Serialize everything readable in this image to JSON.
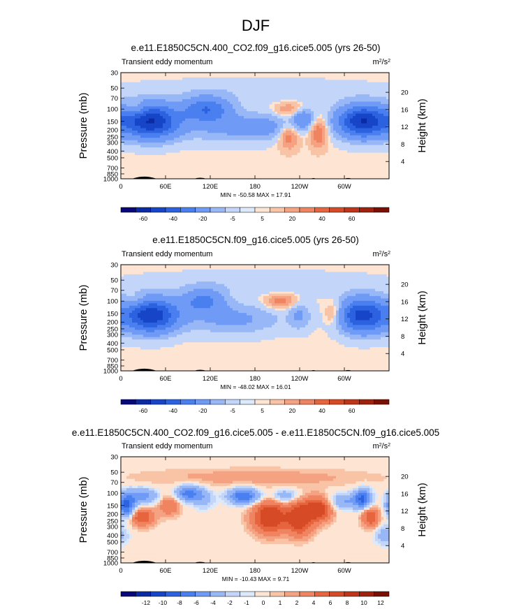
{
  "page_title": "DJF",
  "colors": {
    "neg": [
      "#08087a",
      "#0b2aa4",
      "#1745c8",
      "#2c62e0",
      "#4a7ff0",
      "#6f9af5",
      "#98b7f7",
      "#c3d6fa",
      "#dce9fb"
    ],
    "pos": [
      "#fde4d3",
      "#f9c3a6",
      "#f5a283",
      "#f08460",
      "#e6653f",
      "#d64a26",
      "#bf3517",
      "#9e220e",
      "#7a0f06"
    ],
    "background": "#fde4d3",
    "land": "#000000"
  },
  "chart_data": [
    {
      "type": "heatmap",
      "title": "e.e11.E1850C5CN.400_CO2.f09_g16.cice5.005 (yrs 26-50)",
      "left_subtitle": "Transient eddy momentum",
      "right_subtitle_base": "m",
      "right_subtitle_sup1": "2",
      "right_subtitle_mid": "/s",
      "right_subtitle_sup2": "2",
      "ylabel": "Pressure (mb)",
      "ylabel_right": "Height (km)",
      "yticks": [
        "30",
        "50",
        "70",
        "100",
        "150",
        "200",
        "250",
        "300",
        "400",
        "500",
        "700",
        "850",
        "1000"
      ],
      "yticks_values": [
        30,
        50,
        70,
        100,
        150,
        200,
        250,
        300,
        400,
        500,
        700,
        850,
        1000
      ],
      "yticks_right": [
        "20",
        "16",
        "12",
        "8",
        "4"
      ],
      "yticks_right_values": [
        20,
        16,
        12,
        8,
        4
      ],
      "xticks": [
        "0",
        "60E",
        "120E",
        "180",
        "120W",
        "60W"
      ],
      "xticks_values": [
        0,
        60,
        120,
        180,
        240,
        300
      ],
      "xlim": [
        0,
        360
      ],
      "ylim": [
        1000,
        30
      ],
      "stats": "MIN = -50.58  MAX =  17.91",
      "colorbar_labels": [
        "-60",
        "-40",
        "-20",
        "-5",
        "5",
        "20",
        "40",
        "60"
      ],
      "colorbar_label_after": [
        1,
        3,
        5,
        7,
        9,
        11,
        13,
        15
      ],
      "features": [
        {
          "lon": 40,
          "p": 150,
          "value": -50,
          "dlon": 26,
          "dlogp": 0.17
        },
        {
          "lon": 115,
          "p": 100,
          "value": -28,
          "dlon": 22,
          "dlogp": 0.12
        },
        {
          "lon": 145,
          "p": 180,
          "value": -12,
          "dlon": 45,
          "dlogp": 0.15
        },
        {
          "lon": 200,
          "p": 180,
          "value": -8,
          "dlon": 25,
          "dlogp": 0.12
        },
        {
          "lon": 245,
          "p": 140,
          "value": -18,
          "dlon": 10,
          "dlogp": 0.1
        },
        {
          "lon": 225,
          "p": 250,
          "value": 15,
          "dlon": 9,
          "dlogp": 0.12
        },
        {
          "lon": 265,
          "p": 220,
          "value": 17,
          "dlon": 8,
          "dlogp": 0.14
        },
        {
          "lon": 325,
          "p": 150,
          "value": -50,
          "dlon": 24,
          "dlogp": 0.16
        },
        {
          "lon": 20,
          "p": 100,
          "value": 10,
          "dlon": 10,
          "dlogp": 0.07
        },
        {
          "lon": 225,
          "p": 100,
          "value": 10,
          "dlon": 12,
          "dlogp": 0.07
        },
        {
          "lon": 180,
          "p": 55,
          "value": -4,
          "dlon": 120,
          "dlogp": 0.12
        }
      ],
      "value_scale": "main"
    },
    {
      "type": "heatmap",
      "title": "e.e11.E1850C5CN.f09_g16.cice5.005 (yrs 26-50)",
      "left_subtitle": "Transient eddy momentum",
      "right_subtitle_base": "m",
      "right_subtitle_sup1": "2",
      "right_subtitle_mid": "/s",
      "right_subtitle_sup2": "2",
      "ylabel": "Pressure (mb)",
      "ylabel_right": "Height (km)",
      "yticks": [
        "30",
        "50",
        "70",
        "100",
        "150",
        "200",
        "250",
        "300",
        "400",
        "500",
        "700",
        "850",
        "1000"
      ],
      "yticks_values": [
        30,
        50,
        70,
        100,
        150,
        200,
        250,
        300,
        400,
        500,
        700,
        850,
        1000
      ],
      "yticks_right": [
        "20",
        "16",
        "12",
        "8",
        "4"
      ],
      "yticks_right_values": [
        20,
        16,
        12,
        8,
        4
      ],
      "xticks": [
        "0",
        "60E",
        "120E",
        "180",
        "120W",
        "60W"
      ],
      "xticks_values": [
        0,
        60,
        120,
        180,
        240,
        300
      ],
      "xlim": [
        0,
        360
      ],
      "ylim": [
        1000,
        30
      ],
      "stats": "MIN = -48.02  MAX =  16.01",
      "colorbar_labels": [
        "-60",
        "-40",
        "-20",
        "-5",
        "5",
        "20",
        "40",
        "60"
      ],
      "colorbar_label_after": [
        1,
        3,
        5,
        7,
        9,
        11,
        13,
        15
      ],
      "features": [
        {
          "lon": 40,
          "p": 160,
          "value": -48,
          "dlon": 25,
          "dlogp": 0.17
        },
        {
          "lon": 110,
          "p": 100,
          "value": -22,
          "dlon": 20,
          "dlogp": 0.12
        },
        {
          "lon": 150,
          "p": 180,
          "value": -12,
          "dlon": 45,
          "dlogp": 0.15
        },
        {
          "lon": 240,
          "p": 160,
          "value": -10,
          "dlon": 10,
          "dlogp": 0.14
        },
        {
          "lon": 215,
          "p": 100,
          "value": 14,
          "dlon": 14,
          "dlogp": 0.07
        },
        {
          "lon": 285,
          "p": 150,
          "value": 10,
          "dlon": 8,
          "dlogp": 0.12
        },
        {
          "lon": 325,
          "p": 160,
          "value": -45,
          "dlon": 22,
          "dlogp": 0.17
        },
        {
          "lon": 20,
          "p": 100,
          "value": 8,
          "dlon": 10,
          "dlogp": 0.07
        },
        {
          "lon": 180,
          "p": 55,
          "value": -4,
          "dlon": 120,
          "dlogp": 0.12
        }
      ],
      "value_scale": "main"
    },
    {
      "type": "heatmap",
      "title": "e.e11.E1850C5CN.400_CO2.f09_g16.cice5.005 - e.e11.E1850C5CN.f09_g16.cice5.005",
      "left_subtitle": "Transient eddy momentum",
      "right_subtitle_base": "m",
      "right_subtitle_sup1": "2",
      "right_subtitle_mid": "/s",
      "right_subtitle_sup2": "2",
      "ylabel": "Pressure (mb)",
      "ylabel_right": "Height (km)",
      "yticks": [
        "30",
        "50",
        "70",
        "100",
        "150",
        "200",
        "250",
        "300",
        "400",
        "500",
        "700",
        "850",
        "1000"
      ],
      "yticks_values": [
        30,
        50,
        70,
        100,
        150,
        200,
        250,
        300,
        400,
        500,
        700,
        850,
        1000
      ],
      "yticks_right": [
        "20",
        "16",
        "12",
        "8",
        "4"
      ],
      "yticks_right_values": [
        20,
        16,
        12,
        8,
        4
      ],
      "xticks": [
        "0",
        "60E",
        "120E",
        "180",
        "120W",
        "60W"
      ],
      "xticks_values": [
        0,
        60,
        120,
        180,
        240,
        300
      ],
      "xlim": [
        0,
        360
      ],
      "ylim": [
        1000,
        30
      ],
      "stats": "MIN = -10.43  MAX =   9.71",
      "colorbar_labels": [
        "-12",
        "-10",
        "-8",
        "-6",
        "-4",
        "-2",
        "-1",
        "0",
        "1",
        "2",
        "4",
        "6",
        "8",
        "10",
        "12"
      ],
      "colorbar_label_after": [
        1,
        2,
        3,
        4,
        5,
        6,
        7,
        8,
        9,
        10,
        11,
        12,
        13,
        14,
        15
      ],
      "features": [
        {
          "lon": 8,
          "p": 150,
          "value": -9,
          "dlon": 8,
          "dlogp": 0.12
        },
        {
          "lon": 30,
          "p": 110,
          "value": -5,
          "dlon": 14,
          "dlogp": 0.08
        },
        {
          "lon": 28,
          "p": 220,
          "value": 6,
          "dlon": 12,
          "dlogp": 0.09
        },
        {
          "lon": 65,
          "p": 150,
          "value": 4,
          "dlon": 10,
          "dlogp": 0.1
        },
        {
          "lon": 90,
          "p": 100,
          "value": -7,
          "dlon": 12,
          "dlogp": 0.08
        },
        {
          "lon": 110,
          "p": 120,
          "value": -3,
          "dlon": 10,
          "dlogp": 0.1
        },
        {
          "lon": 165,
          "p": 110,
          "value": -8,
          "dlon": 15,
          "dlogp": 0.08
        },
        {
          "lon": 200,
          "p": 220,
          "value": 9,
          "dlon": 16,
          "dlogp": 0.16
        },
        {
          "lon": 240,
          "p": 230,
          "value": 9,
          "dlon": 12,
          "dlogp": 0.16
        },
        {
          "lon": 265,
          "p": 170,
          "value": 8,
          "dlon": 12,
          "dlogp": 0.12
        },
        {
          "lon": 220,
          "p": 110,
          "value": -4,
          "dlon": 12,
          "dlogp": 0.07
        },
        {
          "lon": 300,
          "p": 130,
          "value": -4,
          "dlon": 15,
          "dlogp": 0.08
        },
        {
          "lon": 325,
          "p": 120,
          "value": -8,
          "dlon": 8,
          "dlogp": 0.1
        },
        {
          "lon": 335,
          "p": 220,
          "value": 6,
          "dlon": 8,
          "dlogp": 0.1
        },
        {
          "lon": 355,
          "p": 400,
          "value": -3,
          "dlon": 10,
          "dlogp": 0.1
        },
        {
          "lon": 180,
          "p": 60,
          "value": 1.5,
          "dlon": 120,
          "dlogp": 0.1
        }
      ],
      "value_scale": "diff"
    }
  ],
  "levels": {
    "main": [
      -70,
      -60,
      -50,
      -40,
      -30,
      -20,
      -10,
      -5,
      -1,
      1,
      5,
      10,
      20,
      30,
      40,
      50,
      60,
      70
    ],
    "diff": [
      -13,
      -12,
      -11,
      -10,
      -9,
      -8,
      -6,
      -4,
      -2,
      -1,
      -0.5,
      0,
      0.5,
      1,
      2,
      4,
      6,
      8,
      10,
      11,
      12,
      13
    ]
  }
}
